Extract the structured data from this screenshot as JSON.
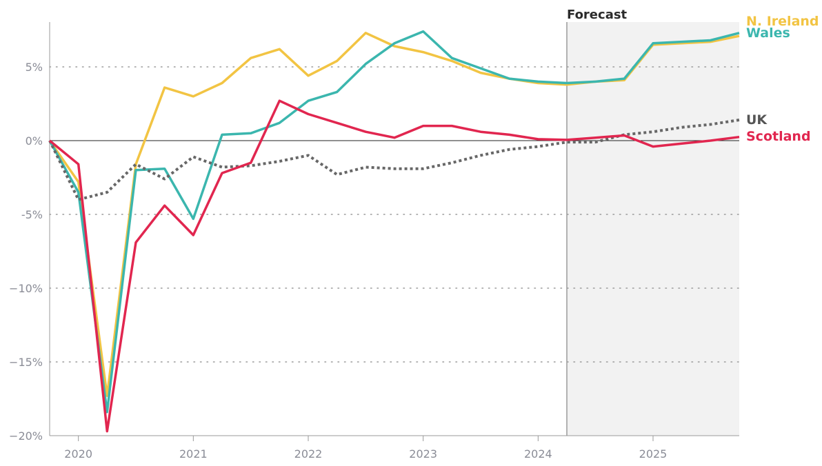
{
  "chart_data": {
    "type": "line",
    "title": "",
    "xlabel": "",
    "ylabel": "",
    "forecast_label": "Forecast",
    "forecast_start": 2024.25,
    "x": [
      2019.75,
      2020.0,
      2020.25,
      2020.5,
      2020.75,
      2021.0,
      2021.25,
      2021.5,
      2021.75,
      2022.0,
      2022.25,
      2022.5,
      2022.75,
      2023.0,
      2023.25,
      2023.5,
      2023.75,
      2024.0,
      2024.25,
      2024.5,
      2024.75,
      2025.0,
      2025.25,
      2025.5,
      2025.75
    ],
    "xlim": [
      2019.75,
      2025.75
    ],
    "ylim": [
      -20,
      8
    ],
    "x_ticks": [
      2020,
      2021,
      2022,
      2023,
      2024,
      2025
    ],
    "x_tick_labels": [
      "2020",
      "2021",
      "2022",
      "2023",
      "2024",
      "2025"
    ],
    "y_ticks": [
      5,
      0,
      -5,
      -10,
      -15,
      -20
    ],
    "y_tick_labels": [
      "5%",
      "0%",
      "-5%",
      "−10%",
      "−15%",
      "−20%"
    ],
    "grid": "horizontal dotted",
    "colors": {
      "n_ireland": "#f2c443",
      "wales": "#3bb6ae",
      "uk": "#676767",
      "scotland": "#e1264f",
      "forecast_shade": "#f2f2f2",
      "axis": "#999999"
    },
    "series": [
      {
        "name": "N. Ireland",
        "color": "#f2c443",
        "style": "solid",
        "values": [
          0,
          -2.8,
          -17.3,
          -1.6,
          3.6,
          3.0,
          3.9,
          5.6,
          6.2,
          4.4,
          5.4,
          7.3,
          6.4,
          6.0,
          5.4,
          4.6,
          4.2,
          3.9,
          3.8,
          4.0,
          4.1,
          6.5,
          6.6,
          6.7,
          7.1
        ]
      },
      {
        "name": "Wales",
        "color": "#3bb6ae",
        "style": "solid",
        "values": [
          0,
          -3.5,
          -18.4,
          -2.0,
          -1.9,
          -5.3,
          0.4,
          0.5,
          1.2,
          2.7,
          3.3,
          5.2,
          6.6,
          7.4,
          5.6,
          4.9,
          4.2,
          4.0,
          3.9,
          4.0,
          4.2,
          6.6,
          6.7,
          6.8,
          7.3
        ]
      },
      {
        "name": "UK",
        "color": "#676767",
        "style": "dotted",
        "values": [
          0,
          -4.0,
          -3.5,
          -1.6,
          -2.6,
          -1.1,
          -1.8,
          -1.7,
          -1.4,
          -1.0,
          -2.3,
          -1.8,
          -1.9,
          -1.9,
          -1.5,
          -1.0,
          -0.6,
          -0.4,
          -0.1,
          -0.1,
          0.4,
          0.6,
          0.9,
          1.1,
          1.4
        ]
      },
      {
        "name": "Scotland",
        "color": "#e1264f",
        "style": "solid",
        "values": [
          0,
          -1.6,
          -19.7,
          -6.9,
          -4.4,
          -6.4,
          -2.2,
          -1.5,
          2.7,
          1.8,
          1.2,
          0.6,
          0.2,
          1.0,
          1.0,
          0.6,
          0.4,
          0.1,
          0.05,
          0.2,
          0.35,
          -0.4,
          -0.2,
          0.0,
          0.25
        ]
      }
    ]
  }
}
